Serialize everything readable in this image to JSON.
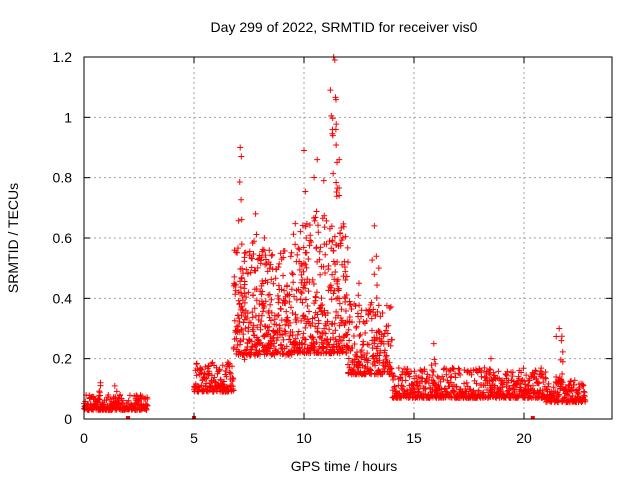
{
  "chart_data": {
    "type": "scatter",
    "title": "Day 299 of 2022, SRMTID for receiver vis0",
    "xlabel": "GPS time / hours",
    "ylabel": "SRMTID / TECUs",
    "xlim": [
      0,
      24
    ],
    "ylim": [
      0,
      1.2
    ],
    "x_ticks": [
      0,
      5,
      10,
      15,
      20
    ],
    "x_tick_labels": [
      "0",
      "5",
      "10",
      "15",
      "20"
    ],
    "y_ticks": [
      0,
      0.2,
      0.4,
      0.6,
      0.8,
      1.0,
      1.2
    ],
    "y_tick_labels": [
      "0",
      "0.2",
      "0.4",
      "0.6",
      "0.8",
      "1",
      "1.2"
    ],
    "grid": true,
    "marker": "+",
    "series_color": "#ff0000",
    "series": [
      {
        "name": "SRMTID",
        "segments": [
          {
            "x_start": 0.0,
            "x_end": 2.9,
            "base": 0.045,
            "spread": 0.025,
            "step": 0.012
          },
          {
            "x_start": 5.0,
            "x_end": 6.8,
            "base": 0.12,
            "spread": 0.05,
            "step": 0.012
          },
          {
            "x_start": 6.8,
            "x_end": 9.5,
            "base": 0.32,
            "spread": 0.18,
            "step": 0.008
          },
          {
            "x_start": 9.5,
            "x_end": 12.0,
            "base": 0.35,
            "spread": 0.22,
            "step": 0.008
          },
          {
            "x_start": 12.0,
            "x_end": 14.0,
            "base": 0.22,
            "spread": 0.12,
            "step": 0.01
          },
          {
            "x_start": 14.0,
            "x_end": 21.0,
            "base": 0.1,
            "spread": 0.05,
            "step": 0.012
          },
          {
            "x_start": 21.0,
            "x_end": 22.8,
            "base": 0.08,
            "spread": 0.04,
            "step": 0.012
          }
        ],
        "peaks": [
          {
            "x": 7.1,
            "y": 0.9
          },
          {
            "x": 7.15,
            "y": 0.87
          },
          {
            "x": 7.3,
            "y": 0.55
          },
          {
            "x": 7.8,
            "y": 0.68
          },
          {
            "x": 8.2,
            "y": 0.6
          },
          {
            "x": 8.4,
            "y": 0.52
          },
          {
            "x": 10.0,
            "y": 0.89
          },
          {
            "x": 10.1,
            "y": 0.6
          },
          {
            "x": 10.6,
            "y": 0.86
          },
          {
            "x": 10.9,
            "y": 0.79
          },
          {
            "x": 11.2,
            "y": 1.09
          },
          {
            "x": 11.35,
            "y": 1.2
          },
          {
            "x": 11.4,
            "y": 1.19
          },
          {
            "x": 11.45,
            "y": 0.96
          },
          {
            "x": 11.6,
            "y": 0.86
          },
          {
            "x": 12.0,
            "y": 0.52
          },
          {
            "x": 12.5,
            "y": 0.45
          },
          {
            "x": 13.2,
            "y": 0.64
          },
          {
            "x": 13.4,
            "y": 0.5
          },
          {
            "x": 15.9,
            "y": 0.25
          },
          {
            "x": 18.5,
            "y": 0.2
          },
          {
            "x": 21.6,
            "y": 0.3
          },
          {
            "x": 21.7,
            "y": 0.26
          },
          {
            "x": 0.75,
            "y": 0.12
          },
          {
            "x": 1.4,
            "y": 0.11
          }
        ],
        "zero_points": [
          2.0,
          5.0,
          20.4
        ]
      }
    ]
  }
}
